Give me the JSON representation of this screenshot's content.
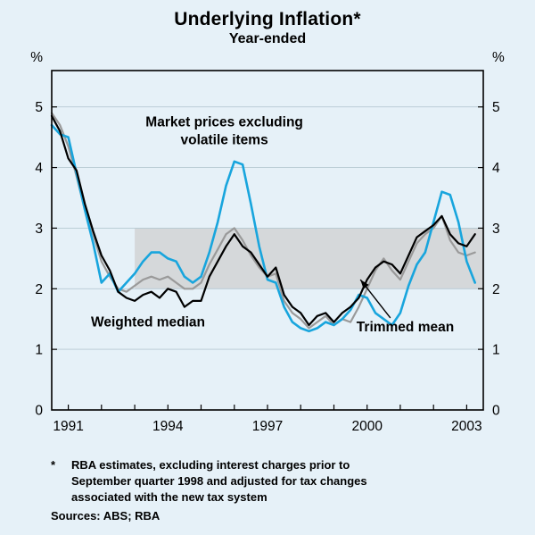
{
  "chart_data": {
    "type": "line",
    "title": "Underlying Inflation*",
    "subtitle": "Year-ended",
    "ylabel_left": "%",
    "ylabel_right": "%",
    "ylim": [
      0,
      5.6
    ],
    "yticks": [
      0,
      1,
      2,
      3,
      4,
      5
    ],
    "xlim": [
      1990.5,
      2003.5
    ],
    "xtick_labels": [
      1991,
      1994,
      1997,
      2000,
      2003
    ],
    "x_start": 1990.5,
    "x_step": 0.25,
    "grid": true,
    "legend_position": "inline-annotations",
    "colors": {
      "background": "#e6f1f8",
      "band": "#d5d8da",
      "grid": "#b5c8d2",
      "frame": "#000000",
      "blue": "#18a5dd",
      "gray": "#9a9a9a",
      "black": "#000000"
    },
    "target_band": {
      "from_x": 1993,
      "y_low": 2,
      "y_high": 3,
      "color": "#d5d8da"
    },
    "series": [
      {
        "id": "trimmed-mean",
        "name": "Trimmed mean",
        "color": "#9a9a9a",
        "width": 2.2,
        "values": [
          4.9,
          4.7,
          4.35,
          3.85,
          3.3,
          2.9,
          2.45,
          2.2,
          2.0,
          1.95,
          2.05,
          2.15,
          2.2,
          2.15,
          2.2,
          2.1,
          2.0,
          2.0,
          2.1,
          2.4,
          2.65,
          2.9,
          3.0,
          2.8,
          2.55,
          2.35,
          2.2,
          2.25,
          1.8,
          1.6,
          1.5,
          1.35,
          1.45,
          1.55,
          1.4,
          1.5,
          1.45,
          1.7,
          2.0,
          2.3,
          2.5,
          2.3,
          2.15,
          2.45,
          2.75,
          2.9,
          3.0,
          3.2,
          2.8,
          2.6,
          2.55,
          2.6
        ]
      },
      {
        "id": "market-prices-excluding-volatile-items",
        "name": "Market prices excluding volatile items",
        "color": "#18a5dd",
        "width": 2.6,
        "values": [
          4.7,
          4.55,
          4.5,
          3.9,
          3.3,
          2.75,
          2.1,
          2.25,
          1.95,
          2.1,
          2.25,
          2.45,
          2.6,
          2.6,
          2.5,
          2.45,
          2.2,
          2.1,
          2.2,
          2.6,
          3.1,
          3.7,
          4.1,
          4.05,
          3.4,
          2.7,
          2.15,
          2.1,
          1.7,
          1.45,
          1.35,
          1.3,
          1.35,
          1.45,
          1.4,
          1.5,
          1.65,
          1.9,
          1.85,
          1.6,
          1.5,
          1.4,
          1.6,
          2.05,
          2.4,
          2.6,
          3.1,
          3.6,
          3.55,
          3.1,
          2.45,
          2.1
        ]
      },
      {
        "id": "weighted-median",
        "name": "Weighted median",
        "color": "#000000",
        "width": 2.2,
        "values": [
          4.85,
          4.6,
          4.15,
          3.95,
          3.4,
          2.95,
          2.55,
          2.3,
          1.95,
          1.85,
          1.8,
          1.9,
          1.95,
          1.85,
          2.0,
          1.95,
          1.7,
          1.8,
          1.8,
          2.2,
          2.45,
          2.7,
          2.9,
          2.7,
          2.6,
          2.4,
          2.2,
          2.35,
          1.9,
          1.7,
          1.6,
          1.4,
          1.55,
          1.6,
          1.45,
          1.6,
          1.7,
          1.85,
          2.15,
          2.35,
          2.45,
          2.4,
          2.25,
          2.55,
          2.85,
          2.95,
          3.05,
          3.2,
          2.9,
          2.75,
          2.7,
          2.9
        ]
      }
    ],
    "annotations": [
      {
        "id": "market-prices-label",
        "lines": [
          "Market prices excluding",
          "volatile items"
        ],
        "x": 1995.7,
        "y": 4.68
      },
      {
        "id": "weighted-median-label",
        "lines": [
          "Weighted median"
        ],
        "x": 1993.4,
        "y": 1.38
      },
      {
        "id": "trimmed-mean-label",
        "lines": [
          "Trimmed mean"
        ],
        "x": 2001.15,
        "y": 1.3,
        "arrow": {
          "x1": 2000.7,
          "y1": 1.52,
          "x2": 1999.8,
          "y2": 2.15
        }
      }
    ]
  },
  "footnote": {
    "marker": "*",
    "lines": [
      "RBA estimates, excluding interest charges prior to",
      "September quarter 1998 and adjusted for tax changes",
      "associated with the new tax system"
    ],
    "sources": "Sources: ABS; RBA"
  }
}
